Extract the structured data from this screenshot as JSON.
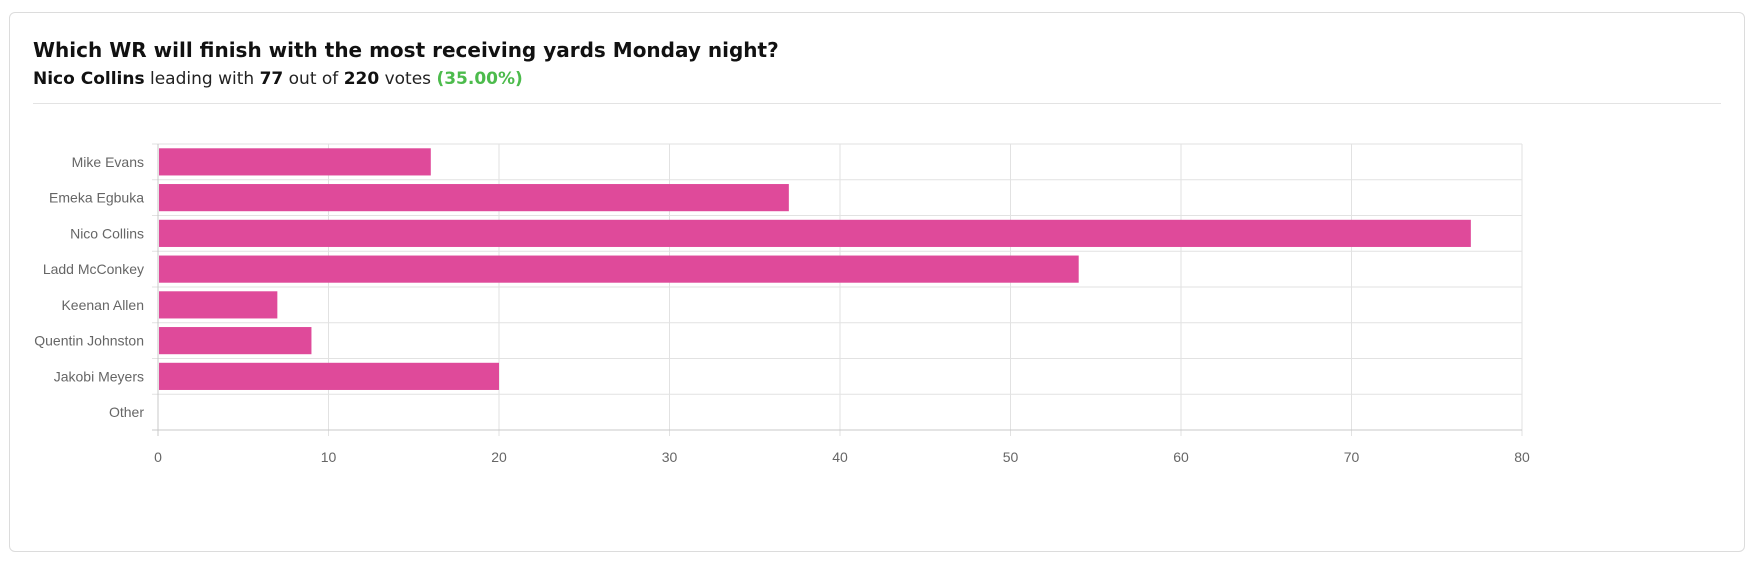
{
  "poll": {
    "question": "Which WR will finish with the most receiving yards Monday night?",
    "leader_name": "Nico Collins",
    "leading_text": "leading with",
    "leader_votes": "77",
    "out_of_text": "out of",
    "total_votes": "220",
    "votes_text": "votes",
    "leader_pct": "(35.00%)"
  },
  "colors": {
    "bar": "#df4a9a",
    "accent_green": "#4cbb4c",
    "grid": "#e2e2e2",
    "axis": "#c8c8c8",
    "tick_text": "#666666"
  },
  "chart_data": {
    "type": "bar",
    "orientation": "horizontal",
    "categories": [
      "Mike Evans",
      "Emeka Egbuka",
      "Nico Collins",
      "Ladd McConkey",
      "Keenan Allen",
      "Quentin Johnston",
      "Jakobi Meyers",
      "Other"
    ],
    "values": [
      16,
      37,
      77,
      54,
      7,
      9,
      20,
      0
    ],
    "xlim": [
      0,
      80
    ],
    "xticks": [
      "0",
      "10",
      "20",
      "30",
      "40",
      "50",
      "60",
      "70",
      "80"
    ],
    "grid": true,
    "legend": "none",
    "title": "",
    "xlabel": "",
    "ylabel": ""
  }
}
